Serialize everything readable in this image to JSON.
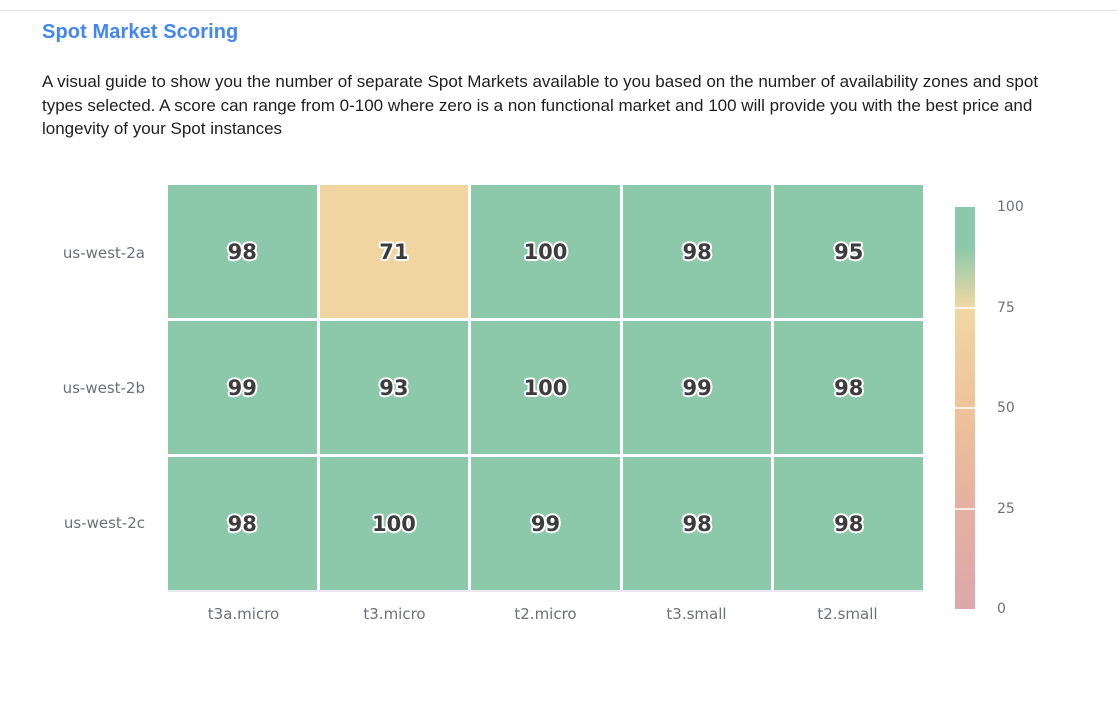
{
  "page": {
    "title": "Spot Market Scoring",
    "title_color": "#4285F4",
    "description": "A visual guide to show you the number of separate Spot Markets available to you based on the number of availability zones and spot types selected. A score can range from 0-100 where zero is a non functional market and 100 will provide you with the best price and longevity of your Spot instances"
  },
  "chart_data": {
    "type": "heatmap",
    "title": "Spot Market Scoring",
    "rows": [
      "us-west-2a",
      "us-west-2b",
      "us-west-2c"
    ],
    "columns": [
      "t3a.micro",
      "t3.micro",
      "t2.micro",
      "t3.small",
      "t2.small"
    ],
    "values": [
      [
        98,
        71,
        100,
        98,
        95
      ],
      [
        99,
        93,
        100,
        99,
        98
      ],
      [
        98,
        100,
        99,
        98,
        98
      ]
    ],
    "value_range": [
      0,
      100
    ],
    "colorbar": {
      "position": "right",
      "ticks": [
        100,
        75,
        50,
        25,
        0
      ]
    },
    "color_scale": [
      {
        "value": 0,
        "color": "#DCA8AC"
      },
      {
        "value": 25,
        "color": "#E3B1A0"
      },
      {
        "value": 50,
        "color": "#EEC399"
      },
      {
        "value": 75,
        "color": "#F0D8A3"
      },
      {
        "value": 90,
        "color": "#8CC9AA"
      },
      {
        "value": 100,
        "color": "#8CC9AA"
      }
    ],
    "cell_label_color": "#3C3C3C",
    "axis_label_color": "#6E7079"
  }
}
